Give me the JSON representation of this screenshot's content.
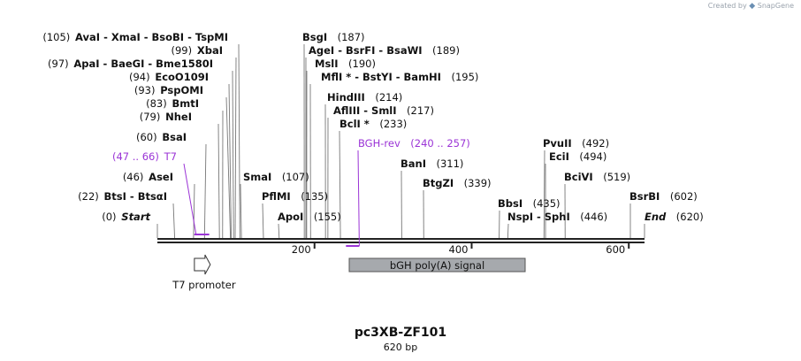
{
  "credit": {
    "prefix": "Created by",
    "brand": "SnapGene"
  },
  "map": {
    "name": "pc3XB-ZF101",
    "length_label": "620 bp",
    "length_bp": 620,
    "ticks": [
      {
        "bp": 200,
        "label": "200"
      },
      {
        "bp": 400,
        "label": "400"
      },
      {
        "bp": 600,
        "label": "600"
      }
    ],
    "sites": [
      {
        "name": "AvaI",
        "rest": [
          " - XmaI",
          " - BsoBI",
          " - TspMI"
        ],
        "pos": "(105)",
        "bp": 105
      },
      {
        "name": "XbaI",
        "rest": [],
        "pos": "(99)",
        "bp": 99
      },
      {
        "name": "ApaI",
        "rest": [
          " - BaeGI",
          " - Bme1580I"
        ],
        "pos": "(97)",
        "bp": 97
      },
      {
        "name": "EcoO109I",
        "rest": [],
        "pos": "(94)",
        "bp": 94
      },
      {
        "name": "PspOMI",
        "rest": [],
        "pos": "(93)",
        "bp": 93
      },
      {
        "name": "BmtI",
        "rest": [],
        "pos": "(83)",
        "bp": 83
      },
      {
        "name": "NheI",
        "rest": [],
        "pos": "(79)",
        "bp": 79
      },
      {
        "name": "BsaI",
        "rest": [],
        "pos": "(60)",
        "bp": 60
      },
      {
        "name": "AseI",
        "rest": [],
        "pos": "(46)",
        "bp": 46
      },
      {
        "name": "BtsI",
        "rest": [
          " - BtsαI"
        ],
        "pos": "(22)",
        "bp": 22
      },
      {
        "name": "Start",
        "rest": [],
        "pos": "(0)",
        "bp": 0
      },
      {
        "name": "SmaI",
        "rest": [],
        "pos": "(107)",
        "bp": 107
      },
      {
        "name": "PflMI",
        "rest": [],
        "pos": "(135)",
        "bp": 135
      },
      {
        "name": "ApoI",
        "rest": [],
        "pos": "(155)",
        "bp": 155
      },
      {
        "name": "BsgI",
        "rest": [],
        "pos": "(187)",
        "bp": 187
      },
      {
        "name": "AgeI",
        "rest": [
          " - BsrFI",
          " - BsaWI"
        ],
        "pos": "(189)",
        "bp": 189
      },
      {
        "name": "MslI",
        "rest": [],
        "pos": "(190)",
        "bp": 190
      },
      {
        "name": "MflI *",
        "rest": [
          " - BstYI",
          " - BamHI"
        ],
        "pos": "(195)",
        "bp": 195
      },
      {
        "name": "HindIII",
        "rest": [],
        "pos": "(214)",
        "bp": 214
      },
      {
        "name": "AflIII",
        "rest": [
          " - SmlI"
        ],
        "pos": "(217)",
        "bp": 217
      },
      {
        "name": "BclI *",
        "rest": [],
        "pos": "(233)",
        "bp": 233
      },
      {
        "name": "BanI",
        "rest": [],
        "pos": "(311)",
        "bp": 311
      },
      {
        "name": "BtgZI",
        "rest": [],
        "pos": "(339)",
        "bp": 339
      },
      {
        "name": "BbsI",
        "rest": [],
        "pos": "(435)",
        "bp": 435
      },
      {
        "name": "NspI",
        "rest": [
          " - SphI"
        ],
        "pos": "(446)",
        "bp": 446
      },
      {
        "name": "PvuII",
        "rest": [],
        "pos": "(492)",
        "bp": 492
      },
      {
        "name": "EciI",
        "rest": [],
        "pos": "(494)",
        "bp": 494
      },
      {
        "name": "BciVI",
        "rest": [],
        "pos": "(519)",
        "bp": 519
      },
      {
        "name": "BsrBI",
        "rest": [],
        "pos": "(602)",
        "bp": 602
      },
      {
        "name": "End",
        "rest": [],
        "pos": "(620)",
        "bp": 620
      }
    ],
    "primers": [
      {
        "name": "T7",
        "range": "(47 .. 66)",
        "start": 47,
        "end": 66
      },
      {
        "name": "BGH-rev",
        "range": "(240 .. 257)",
        "start": 240,
        "end": 257
      }
    ],
    "features": [
      {
        "name": "T7 promoter",
        "start": 46,
        "end": 64
      },
      {
        "name": "bGH poly(A) signal",
        "start": 245,
        "end": 470
      }
    ],
    "colors": {
      "primer": "#9b34d6",
      "feature_fill": "#a6a9ad",
      "backbone": "#222222",
      "leader": "#777777"
    }
  }
}
